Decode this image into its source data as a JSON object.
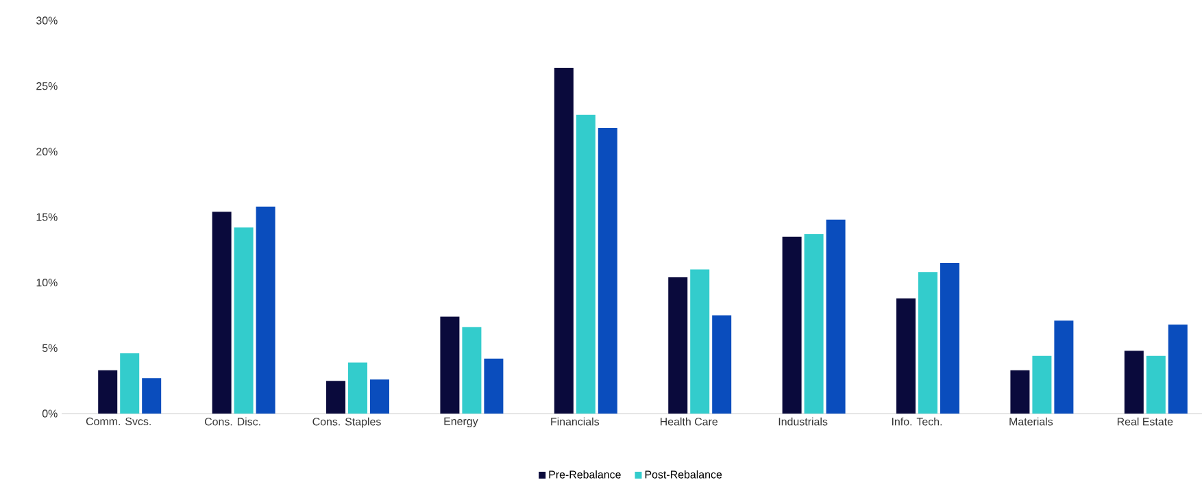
{
  "chart_data": {
    "type": "bar",
    "categories": [
      "Comm. Svcs.",
      "Cons. Disc.",
      "Cons. Staples",
      "Energy",
      "Financials",
      "Health Care",
      "Industrials",
      "Info. Tech.",
      "Materials",
      "Real Estate"
    ],
    "series": [
      {
        "name": "Pre-Rebalance",
        "color": "#0a0a3c",
        "values": [
          3.3,
          15.4,
          2.5,
          7.4,
          26.4,
          10.4,
          13.5,
          8.8,
          3.3,
          4.8
        ]
      },
      {
        "name": "Post-Rebalance",
        "color": "#33cccc",
        "values": [
          4.6,
          14.2,
          3.9,
          6.6,
          22.8,
          11.0,
          13.7,
          10.8,
          4.4,
          4.4
        ]
      },
      {
        "color": "#0a4dbd",
        "values": [
          2.7,
          15.8,
          2.6,
          4.2,
          21.8,
          7.5,
          14.8,
          11.5,
          7.1,
          6.8
        ]
      }
    ],
    "ylim": [
      0,
      30
    ],
    "yticks": [
      {
        "value": 0,
        "label": "0%"
      },
      {
        "value": 5,
        "label": "5%"
      },
      {
        "value": 10,
        "label": "10%"
      },
      {
        "value": 15,
        "label": "15%"
      },
      {
        "value": 20,
        "label": "20%"
      },
      {
        "value": 25,
        "label": "25%"
      },
      {
        "value": 30,
        "label": "30%"
      }
    ],
    "grid": false,
    "legend": "bottom"
  }
}
